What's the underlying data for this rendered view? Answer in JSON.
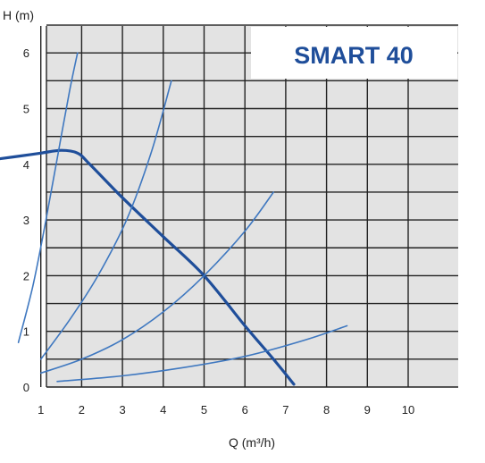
{
  "chart_data": {
    "type": "line",
    "title": "SMART 40",
    "xlabel": "Q (m³/h)",
    "ylabel": "H (m)",
    "xlim": [
      0,
      10
    ],
    "ylim": [
      0,
      6.5
    ],
    "xticks": [
      "1",
      "2",
      "3",
      "4",
      "5",
      "6",
      "7",
      "8",
      "9",
      "10"
    ],
    "yticks": [
      "0",
      "1",
      "2",
      "3",
      "4",
      "5",
      "6"
    ],
    "grid": true,
    "colors": {
      "pump_curve": "#1f4e9a",
      "system_curves": "#3f78c0",
      "grid": "#222222",
      "panel": "#e3e3e3",
      "title": "#1f4e9a"
    },
    "series": [
      {
        "role": "pump",
        "x": [
          0,
          0.5,
          1,
          1.5,
          1.9,
          2.2,
          3,
          4,
          5,
          6,
          6.7,
          7.2
        ],
        "y": [
          4.1,
          4.15,
          4.2,
          4.25,
          4.2,
          4.0,
          3.4,
          2.7,
          2.0,
          1.1,
          0.5,
          0.05
        ]
      },
      {
        "role": "system",
        "x": [
          0.45,
          0.8,
          1.1,
          1.4,
          1.7,
          1.9
        ],
        "y": [
          0.8,
          1.8,
          2.9,
          4.1,
          5.3,
          6.0
        ]
      },
      {
        "role": "system",
        "x": [
          1.0,
          1.7,
          2.4,
          3.1,
          3.7,
          4.2
        ],
        "y": [
          0.5,
          1.2,
          2.0,
          3.0,
          4.2,
          5.5
        ]
      },
      {
        "role": "system",
        "x": [
          1.0,
          2.0,
          3.0,
          4.0,
          5.0,
          6.0,
          6.7
        ],
        "y": [
          0.25,
          0.5,
          0.85,
          1.35,
          2.0,
          2.8,
          3.5
        ]
      },
      {
        "role": "system",
        "x": [
          1.4,
          3.0,
          4.5,
          6.0,
          7.5,
          8.5
        ],
        "y": [
          0.1,
          0.2,
          0.35,
          0.55,
          0.85,
          1.1
        ]
      }
    ]
  }
}
